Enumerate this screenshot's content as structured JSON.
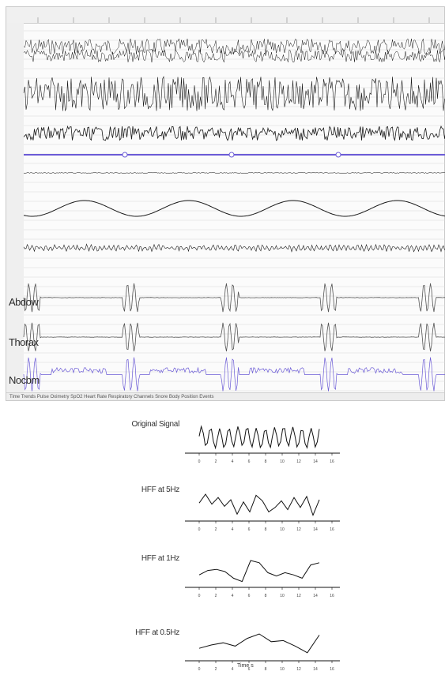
{
  "viewer": {
    "channel_labels": [
      "Abdow",
      "Thorax",
      "Nocbm"
    ],
    "status_text": "Time Trends Pulse Oximetry SpO2 Heart Rate Respiratory Channels Snore Body Position Events"
  },
  "panels": [
    {
      "label": "Original Signal",
      "waveform": "original-signal"
    },
    {
      "label": "HFF at 5Hz",
      "waveform": "hff-5hz"
    },
    {
      "label": "HFF at 1Hz",
      "waveform": "hff-1hz"
    },
    {
      "label": "HFF at 0.5Hz",
      "waveform": "hff-0.5hz"
    }
  ],
  "axis": {
    "ticks": [
      "0",
      "2",
      "4",
      "6",
      "8",
      "10",
      "12",
      "14",
      "16"
    ],
    "xlabel": "Time s"
  },
  "colors": {
    "trace": "#1a1a1a",
    "purple_trace": "#6b5bd6",
    "grid": "#d9d9d9"
  }
}
